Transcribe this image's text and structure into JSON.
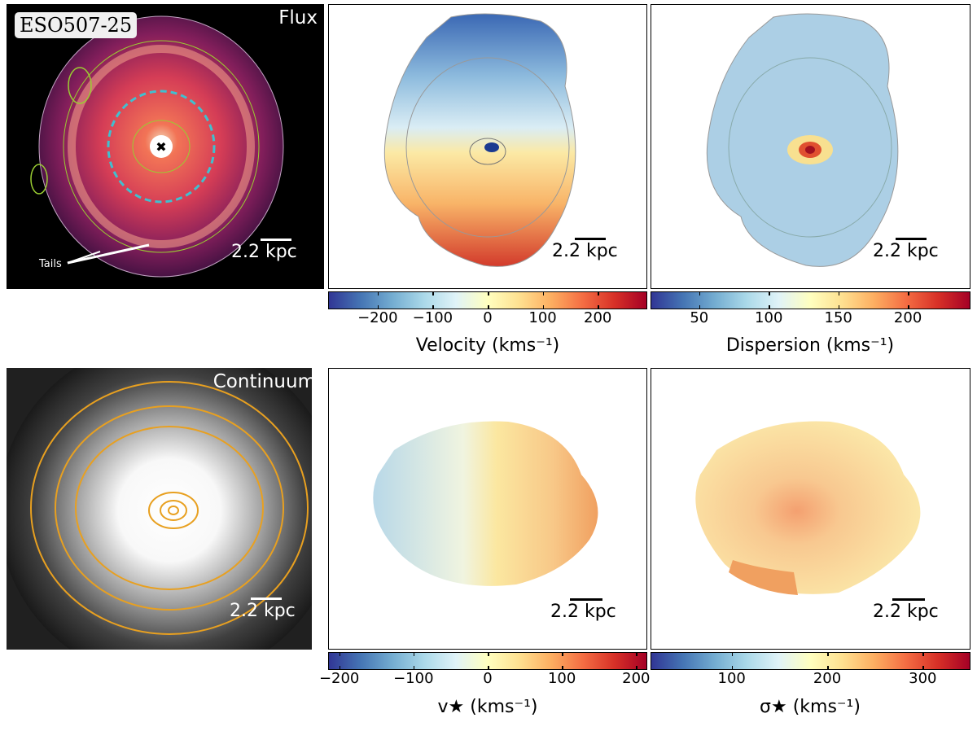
{
  "galaxy_name": "ESO507-25",
  "panels": {
    "flux": {
      "label": "Flux",
      "scale": "2.2 kpc",
      "annotation": "Tails"
    },
    "velocity": {
      "scale": "2.2 kpc"
    },
    "dispersion": {
      "scale": "2.2 kpc"
    },
    "continuum": {
      "label": "Continuum",
      "scale": "2.2 kpc"
    },
    "stellar_velocity": {
      "scale": "2.2 kpc"
    },
    "stellar_dispersion": {
      "scale": "2.2 kpc"
    }
  },
  "colorbars": {
    "velocity": {
      "title": "Velocity (kms⁻¹)",
      "ticks": [
        "−200",
        "−100",
        "0",
        "100",
        "200"
      ],
      "values": [
        -200,
        -100,
        0,
        100,
        200
      ],
      "range": [
        -290,
        290
      ]
    },
    "dispersion": {
      "title": "Dispersion (kms⁻¹)",
      "ticks": [
        "50",
        "100",
        "150",
        "200"
      ],
      "values": [
        50,
        100,
        150,
        200
      ],
      "range": [
        15,
        245
      ]
    },
    "stellar_velocity": {
      "title": "v★ (kms⁻¹)",
      "ticks": [
        "−200",
        "−100",
        "0",
        "100",
        "200"
      ],
      "values": [
        -200,
        -100,
        0,
        100,
        200
      ],
      "range": [
        -215,
        215
      ]
    },
    "stellar_dispersion": {
      "title": "σ★ (kms⁻¹)",
      "ticks": [
        "100",
        "200",
        "300"
      ],
      "values": [
        100,
        200,
        300
      ],
      "range": [
        15,
        350
      ]
    }
  },
  "colors": {
    "contour_orange": "#e8a020",
    "contour_green": "#9acd32",
    "circle_cyan": "#40c0d0"
  }
}
